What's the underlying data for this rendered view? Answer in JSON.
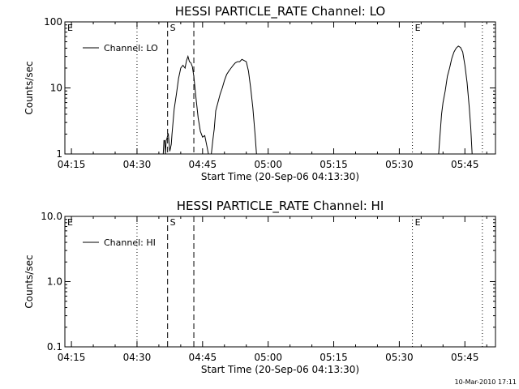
{
  "timestamp": "10-Mar-2010 17:11",
  "chart_data": [
    {
      "type": "line",
      "title": "HESSI PARTICLE_RATE Channel: LO",
      "xlabel": "Start Time (20-Sep-06 04:13:30)",
      "ylabel": "Counts/sec",
      "y_scale": "log",
      "ylim": [
        1,
        100
      ],
      "xlim": [
        "04:13:30",
        "05:52:00"
      ],
      "x_tick_labels": [
        "04:15",
        "04:30",
        "04:45",
        "05:00",
        "05:15",
        "05:30",
        "05:45"
      ],
      "x_ticks": [
        "04:15",
        "04:30",
        "04:45",
        "05:00",
        "05:15",
        "05:30",
        "05:45"
      ],
      "y_tick_labels": [
        "1",
        "10",
        "100"
      ],
      "y_ticks": [
        1,
        10,
        100
      ],
      "legend": "top-left",
      "grid": false,
      "markers": {
        "dotted_lines": [
          "04:30",
          "05:33",
          "05:49"
        ],
        "dashed_lines": [
          "04:37",
          "04:43"
        ],
        "text_markers": [
          {
            "text": "E",
            "x": "04:13:30"
          },
          {
            "text": "S",
            "x": "04:37"
          },
          {
            "text": "E",
            "x": "05:33"
          }
        ]
      },
      "series": [
        {
          "name": "Channel: LO",
          "color": "#000000",
          "segments": [
            [
              [
                "04:36:00",
                1.0
              ],
              [
                "04:36:10",
                1.6
              ],
              [
                "04:36:20",
                1.6
              ],
              [
                "04:36:30",
                1.0
              ],
              [
                "04:36:40",
                1.6
              ],
              [
                "04:36:50",
                1.7
              ],
              [
                "04:37:00",
                1.9
              ],
              [
                "04:37:10",
                2.0
              ],
              [
                "04:37:30",
                1.1
              ],
              [
                "04:37:50",
                1.4
              ],
              [
                "04:38:00",
                2.0
              ],
              [
                "04:38:30",
                4.8
              ],
              [
                "04:39:00",
                8.0
              ],
              [
                "04:39:30",
                14
              ],
              [
                "04:40:00",
                20
              ],
              [
                "04:40:30",
                22
              ],
              [
                "04:41:00",
                20
              ],
              [
                "04:41:20",
                26
              ],
              [
                "04:41:40",
                30
              ],
              [
                "04:42:00",
                25
              ],
              [
                "04:42:20",
                24
              ],
              [
                "04:42:40",
                21
              ],
              [
                "04:43:00",
                15
              ],
              [
                "04:43:30",
                7
              ],
              [
                "04:44:00",
                3.5
              ],
              [
                "04:44:30",
                2.2
              ],
              [
                "04:45:00",
                1.8
              ],
              [
                "04:45:30",
                1.9
              ],
              [
                "04:46:00",
                1.3
              ],
              [
                "04:46:20",
                1.0
              ]
            ],
            [
              [
                "04:47:00",
                1.0
              ],
              [
                "04:47:20",
                1.6
              ],
              [
                "04:47:40",
                2.4
              ],
              [
                "04:48:00",
                4.5
              ],
              [
                "04:48:30",
                6.0
              ],
              [
                "04:49:00",
                8.0
              ],
              [
                "04:49:30",
                10
              ],
              [
                "04:50:00",
                13
              ],
              [
                "04:50:30",
                16
              ],
              [
                "04:51:00",
                18
              ],
              [
                "04:51:30",
                20
              ],
              [
                "04:52:00",
                22
              ],
              [
                "04:52:30",
                24
              ],
              [
                "04:53:00",
                25
              ],
              [
                "04:53:30",
                25
              ],
              [
                "04:54:00",
                27
              ],
              [
                "04:54:30",
                26
              ],
              [
                "04:55:00",
                25
              ],
              [
                "04:55:30",
                18
              ],
              [
                "04:56:00",
                10
              ],
              [
                "04:56:30",
                5
              ],
              [
                "04:57:00",
                2
              ],
              [
                "04:57:20",
                1.0
              ]
            ],
            [
              [
                "05:39:00",
                1.0
              ],
              [
                "05:39:20",
                2.0
              ],
              [
                "05:39:40",
                4.0
              ],
              [
                "05:40:00",
                6.0
              ],
              [
                "05:40:30",
                9.0
              ],
              [
                "05:41:00",
                15
              ],
              [
                "05:41:30",
                20
              ],
              [
                "05:42:00",
                28
              ],
              [
                "05:42:30",
                35
              ],
              [
                "05:43:00",
                40
              ],
              [
                "05:43:30",
                43
              ],
              [
                "05:44:00",
                41
              ],
              [
                "05:44:30",
                35
              ],
              [
                "05:45:00",
                22
              ],
              [
                "05:45:30",
                12
              ],
              [
                "05:46:00",
                5
              ],
              [
                "05:46:20",
                2.5
              ],
              [
                "05:46:40",
                1.0
              ]
            ]
          ]
        }
      ]
    },
    {
      "type": "line",
      "title": "HESSI PARTICLE_RATE Channel: HI",
      "xlabel": "Start Time (20-Sep-06 04:13:30)",
      "ylabel": "Counts/sec",
      "y_scale": "log",
      "ylim": [
        0.1,
        10
      ],
      "xlim": [
        "04:13:30",
        "05:52:00"
      ],
      "x_tick_labels": [
        "04:15",
        "04:30",
        "04:45",
        "05:00",
        "05:15",
        "05:30",
        "05:45"
      ],
      "x_ticks": [
        "04:15",
        "04:30",
        "04:45",
        "05:00",
        "05:15",
        "05:30",
        "05:45"
      ],
      "y_tick_labels": [
        "0.1",
        "1.0",
        "10.0"
      ],
      "y_ticks": [
        0.1,
        1,
        10
      ],
      "legend": "top-left",
      "grid": false,
      "markers": {
        "dotted_lines": [
          "04:30",
          "05:33",
          "05:49"
        ],
        "dashed_lines": [
          "04:37",
          "04:43"
        ],
        "text_markers": [
          {
            "text": "E",
            "x": "04:13:30"
          },
          {
            "text": "S",
            "x": "04:37"
          },
          {
            "text": "E",
            "x": "05:33"
          }
        ]
      },
      "series": [
        {
          "name": "Channel: HI",
          "color": "#000000",
          "segments": []
        }
      ]
    }
  ]
}
